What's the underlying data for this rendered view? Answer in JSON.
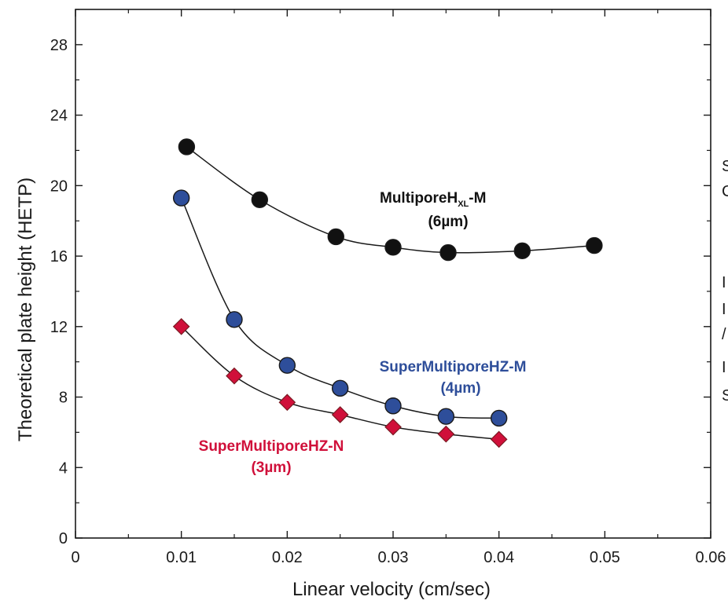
{
  "chart_data": {
    "type": "scatter",
    "title": "",
    "xlabel": "Linear velocity (cm/sec)",
    "ylabel": "Theoretical plate height (HETP)",
    "xlim": [
      0,
      0.06
    ],
    "ylim": [
      0,
      30
    ],
    "xticks": [
      "0",
      "0.01",
      "0.02",
      "0.03",
      "0.04",
      "0.05",
      "0.06"
    ],
    "yticks": [
      "0",
      "4",
      "8",
      "12",
      "16",
      "20",
      "24",
      "28"
    ],
    "grid": false,
    "series": [
      {
        "name_parts": {
          "prefix": "MultiporeH",
          "subscript": "XL",
          "suffix": "-M"
        },
        "label_line2": "(6µm)",
        "color": "#111111",
        "marker": "circle",
        "x": [
          0.0105,
          0.0174,
          0.0246,
          0.03,
          0.0352,
          0.0422,
          0.049
        ],
        "y": [
          22.2,
          19.2,
          17.1,
          16.5,
          16.2,
          16.3,
          16.6
        ]
      },
      {
        "name": "SuperMultiporeHZ-M",
        "label_line2": "(4µm)",
        "color": "#2e4e9a",
        "marker": "circle",
        "x": [
          0.01,
          0.015,
          0.02,
          0.025,
          0.03,
          0.035,
          0.04
        ],
        "y": [
          19.3,
          12.4,
          9.8,
          8.5,
          7.5,
          6.9,
          6.8
        ]
      },
      {
        "name": "SuperMultiporeHZ-N",
        "label_line2": "(3µm)",
        "color": "#d0103a",
        "marker": "diamond",
        "x": [
          0.01,
          0.015,
          0.02,
          0.025,
          0.03,
          0.035,
          0.04
        ],
        "y": [
          12.0,
          9.2,
          7.7,
          7.0,
          6.3,
          5.9,
          5.6
        ]
      }
    ]
  },
  "clipped_text": [
    "S",
    "C",
    "I",
    "I",
    "/",
    "I",
    "S"
  ]
}
